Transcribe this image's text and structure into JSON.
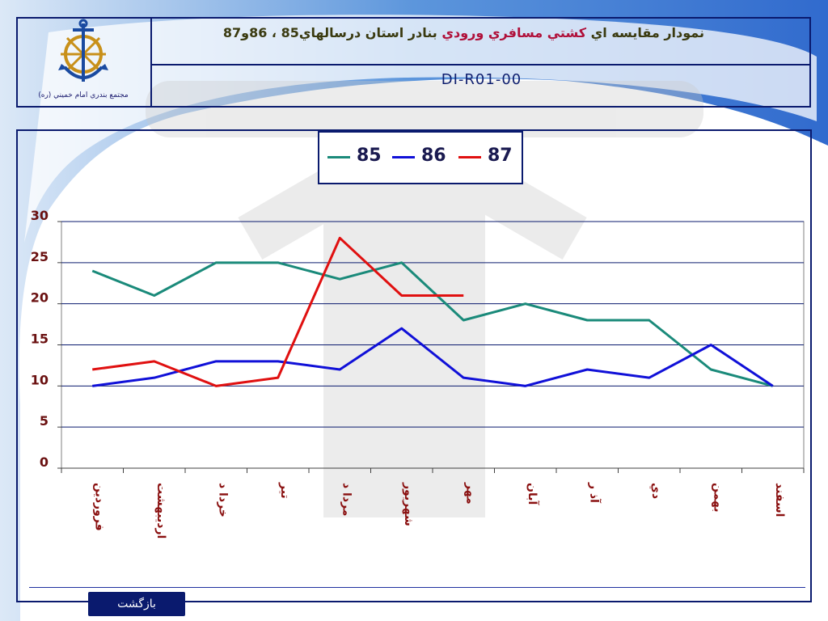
{
  "header": {
    "logo_caption": "مجتمع بندري امام خميني (ره)",
    "title_part1": "نمودار مقايسه اي ",
    "title_highlight": "كشتي مسافري ورودي",
    "title_part2": " بنادر استان درسالهاي85 ، 86و87",
    "code": "DI-R01-00"
  },
  "footer": {
    "back_label": "بازگشت"
  },
  "colors": {
    "frame": "#0a1a6e",
    "series_85": "#1a8a7a",
    "series_86": "#1010d8",
    "series_87": "#e01010"
  },
  "chart_data": {
    "type": "line",
    "categories": [
      "فروردين",
      "ارديبهشت",
      "خرداد",
      "تير",
      "مرداد",
      "شهريور",
      "مهر",
      "آبان",
      "آذر",
      "دي",
      "بهمن",
      "اسفند"
    ],
    "category_labels": [
      "فروردين",
      "ارديبهشت",
      "خردا د",
      "تير",
      "مردا د",
      "شهريور",
      "مهر",
      "آبان",
      "آذ ر",
      "دي",
      "بهمن",
      "اسفند"
    ],
    "series": [
      {
        "name": "85",
        "values": [
          24,
          21,
          25,
          25,
          23,
          25,
          18,
          20,
          18,
          18,
          12,
          10
        ]
      },
      {
        "name": "86",
        "values": [
          10,
          11,
          13,
          13,
          12,
          17,
          11,
          10,
          12,
          11,
          15,
          10
        ]
      },
      {
        "name": "87",
        "values": [
          12,
          13,
          10,
          11,
          28,
          21,
          21,
          null,
          null,
          null,
          null,
          null
        ]
      }
    ],
    "yticks": [
      0,
      5,
      10,
      15,
      20,
      25,
      30
    ],
    "ylim": [
      0,
      30
    ],
    "grid": true,
    "legend_position": "top-center"
  }
}
